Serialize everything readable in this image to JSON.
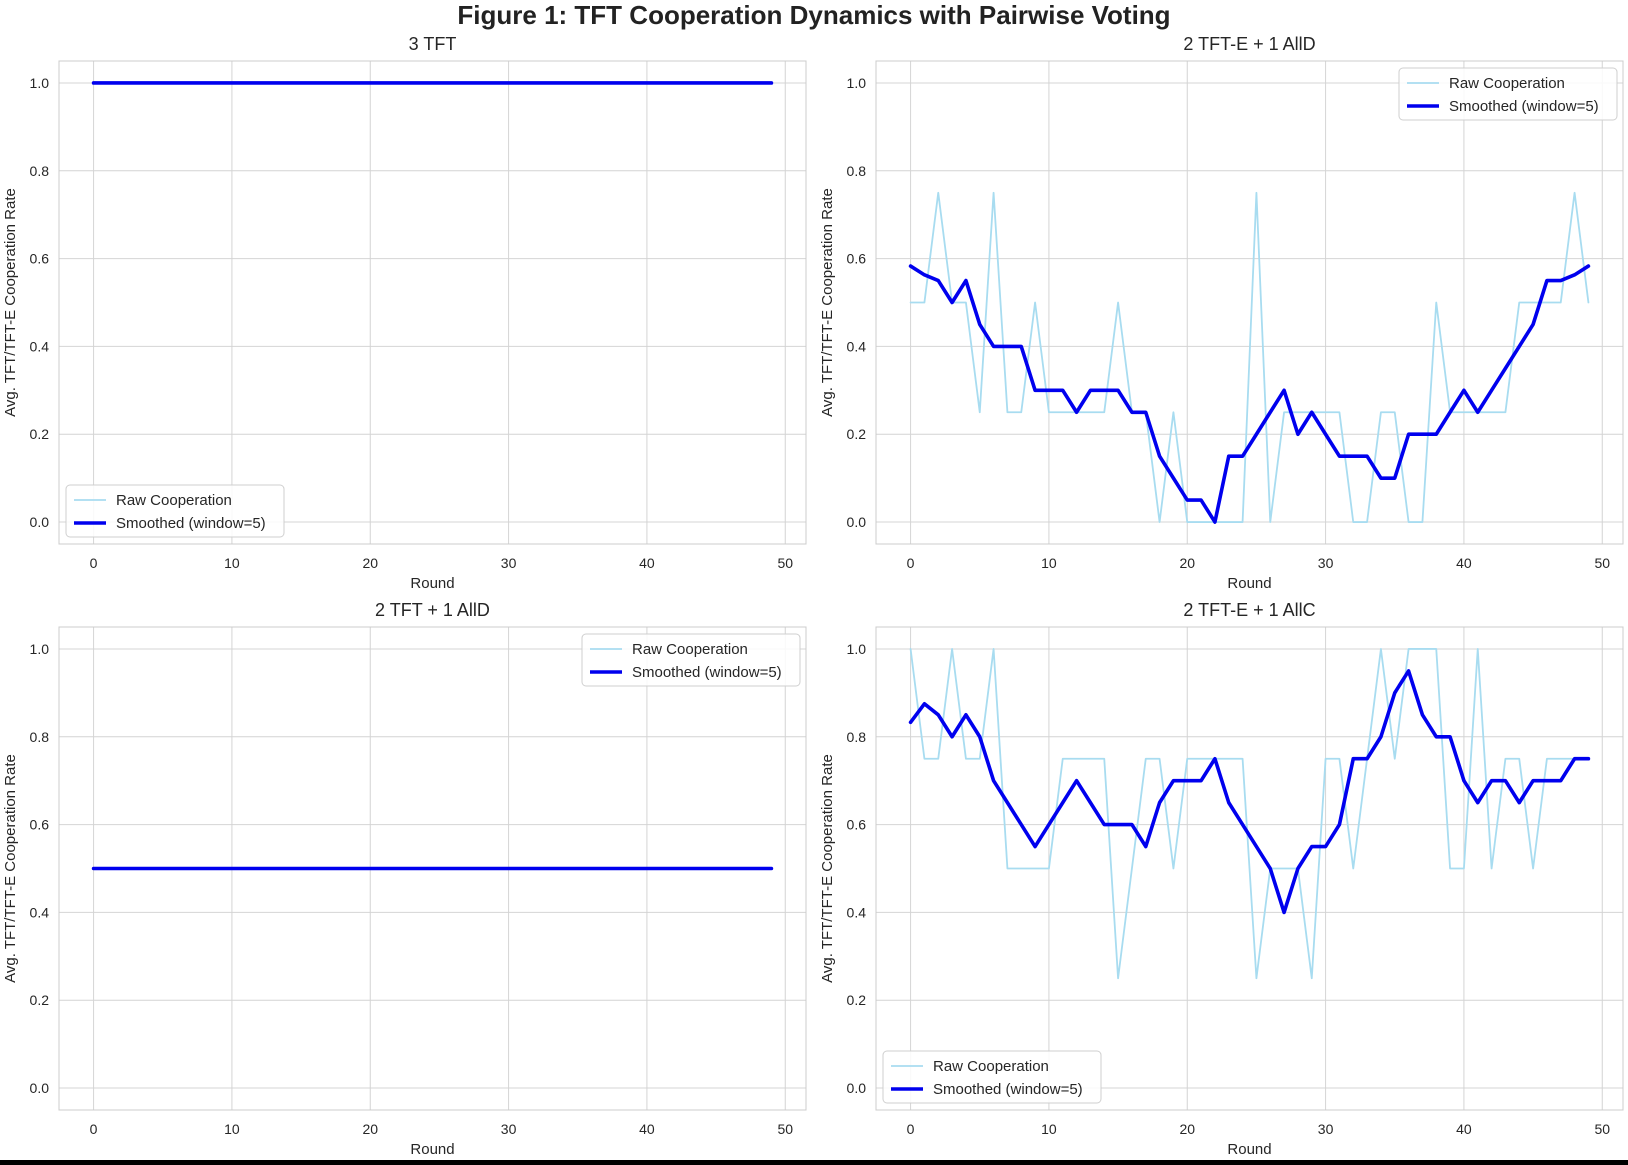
{
  "figure": {
    "title": "Figure 1: TFT Cooperation Dynamics with Pairwise Voting"
  },
  "colors": {
    "raw": "#a8dcf0",
    "smoothed": "#0000ee",
    "grid": "#d4d4d4",
    "spine": "#cccccc"
  },
  "chart_data": [
    {
      "type": "line",
      "title": "3 TFT",
      "xlabel": "Round",
      "ylabel": "Avg. TFT/TFT-E Cooperation Rate",
      "xlim": [
        -2.5,
        51.5
      ],
      "ylim": [
        -0.05,
        1.05
      ],
      "xticks": [
        0,
        10,
        20,
        30,
        40,
        50
      ],
      "yticks": [
        "0.0",
        "0.2",
        "0.4",
        "0.6",
        "0.8",
        "1.0"
      ],
      "grid": true,
      "legend_position": "lower-left",
      "x_start": 0,
      "series": [
        {
          "name": "Raw Cooperation",
          "style": "raw",
          "values": [
            1,
            1,
            1,
            1,
            1,
            1,
            1,
            1,
            1,
            1,
            1,
            1,
            1,
            1,
            1,
            1,
            1,
            1,
            1,
            1,
            1,
            1,
            1,
            1,
            1,
            1,
            1,
            1,
            1,
            1,
            1,
            1,
            1,
            1,
            1,
            1,
            1,
            1,
            1,
            1,
            1,
            1,
            1,
            1,
            1,
            1,
            1,
            1,
            1,
            1
          ]
        },
        {
          "name": "Smoothed (window=5)",
          "style": "smoothed",
          "values": [
            1,
            1,
            1,
            1,
            1,
            1,
            1,
            1,
            1,
            1,
            1,
            1,
            1,
            1,
            1,
            1,
            1,
            1,
            1,
            1,
            1,
            1,
            1,
            1,
            1,
            1,
            1,
            1,
            1,
            1,
            1,
            1,
            1,
            1,
            1,
            1,
            1,
            1,
            1,
            1,
            1,
            1,
            1,
            1,
            1,
            1,
            1,
            1,
            1,
            1
          ]
        }
      ]
    },
    {
      "type": "line",
      "title": "2 TFT-E + 1 AllD",
      "xlabel": "Round",
      "ylabel": "Avg. TFT/TFT-E Cooperation Rate",
      "xlim": [
        -2.5,
        51.5
      ],
      "ylim": [
        -0.05,
        1.05
      ],
      "xticks": [
        0,
        10,
        20,
        30,
        40,
        50
      ],
      "yticks": [
        "0.0",
        "0.2",
        "0.4",
        "0.6",
        "0.8",
        "1.0"
      ],
      "grid": true,
      "legend_position": "upper-right",
      "x_start": 0,
      "series": [
        {
          "name": "Raw Cooperation",
          "style": "raw",
          "values": [
            0.5,
            0.5,
            0.75,
            0.5,
            0.5,
            0.25,
            0.75,
            0.25,
            0.25,
            0.5,
            0.25,
            0.25,
            0.25,
            0.25,
            0.25,
            0.5,
            0.25,
            0.25,
            0,
            0.25,
            0,
            0,
            0,
            0,
            0,
            0.75,
            0,
            0.25,
            0.25,
            0.25,
            0.25,
            0.25,
            0,
            0,
            0.25,
            0.25,
            0,
            0,
            0.5,
            0.25,
            0.25,
            0.25,
            0.25,
            0.25,
            0.5,
            0.5,
            0.5,
            0.5,
            0.75,
            0.5
          ]
        },
        {
          "name": "Smoothed (window=5)",
          "style": "smoothed",
          "values": [
            0.583,
            0.563,
            0.55,
            0.5,
            0.55,
            0.45,
            0.4,
            0.4,
            0.4,
            0.3,
            0.3,
            0.3,
            0.25,
            0.3,
            0.3,
            0.3,
            0.25,
            0.25,
            0.15,
            0.1,
            0.05,
            0.05,
            0,
            0.15,
            0.15,
            0.2,
            0.25,
            0.3,
            0.2,
            0.25,
            0.2,
            0.15,
            0.15,
            0.15,
            0.1,
            0.1,
            0.2,
            0.2,
            0.2,
            0.25,
            0.3,
            0.25,
            0.3,
            0.35,
            0.4,
            0.45,
            0.55,
            0.55,
            0.563,
            0.583
          ]
        }
      ]
    },
    {
      "type": "line",
      "title": "2 TFT + 1 AllD",
      "xlabel": "Round",
      "ylabel": "Avg. TFT/TFT-E Cooperation Rate",
      "xlim": [
        -2.5,
        51.5
      ],
      "ylim": [
        -0.05,
        1.05
      ],
      "xticks": [
        0,
        10,
        20,
        30,
        40,
        50
      ],
      "yticks": [
        "0.0",
        "0.2",
        "0.4",
        "0.6",
        "0.8",
        "1.0"
      ],
      "grid": true,
      "legend_position": "upper-right",
      "x_start": 0,
      "series": [
        {
          "name": "Raw Cooperation",
          "style": "raw",
          "values": [
            0.5,
            0.5,
            0.5,
            0.5,
            0.5,
            0.5,
            0.5,
            0.5,
            0.5,
            0.5,
            0.5,
            0.5,
            0.5,
            0.5,
            0.5,
            0.5,
            0.5,
            0.5,
            0.5,
            0.5,
            0.5,
            0.5,
            0.5,
            0.5,
            0.5,
            0.5,
            0.5,
            0.5,
            0.5,
            0.5,
            0.5,
            0.5,
            0.5,
            0.5,
            0.5,
            0.5,
            0.5,
            0.5,
            0.5,
            0.5,
            0.5,
            0.5,
            0.5,
            0.5,
            0.5,
            0.5,
            0.5,
            0.5,
            0.5,
            0.5
          ]
        },
        {
          "name": "Smoothed (window=5)",
          "style": "smoothed",
          "values": [
            0.5,
            0.5,
            0.5,
            0.5,
            0.5,
            0.5,
            0.5,
            0.5,
            0.5,
            0.5,
            0.5,
            0.5,
            0.5,
            0.5,
            0.5,
            0.5,
            0.5,
            0.5,
            0.5,
            0.5,
            0.5,
            0.5,
            0.5,
            0.5,
            0.5,
            0.5,
            0.5,
            0.5,
            0.5,
            0.5,
            0.5,
            0.5,
            0.5,
            0.5,
            0.5,
            0.5,
            0.5,
            0.5,
            0.5,
            0.5,
            0.5,
            0.5,
            0.5,
            0.5,
            0.5,
            0.5,
            0.5,
            0.5,
            0.5,
            0.5
          ]
        }
      ]
    },
    {
      "type": "line",
      "title": "2 TFT-E + 1 AllC",
      "xlabel": "Round",
      "ylabel": "Avg. TFT/TFT-E Cooperation Rate",
      "xlim": [
        -2.5,
        51.5
      ],
      "ylim": [
        -0.05,
        1.05
      ],
      "xticks": [
        0,
        10,
        20,
        30,
        40,
        50
      ],
      "yticks": [
        "0.0",
        "0.2",
        "0.4",
        "0.6",
        "0.8",
        "1.0"
      ],
      "grid": true,
      "legend_position": "lower-left",
      "x_start": 0,
      "series": [
        {
          "name": "Raw Cooperation",
          "style": "raw",
          "values": [
            1,
            0.75,
            0.75,
            1,
            0.75,
            0.75,
            1,
            0.5,
            0.5,
            0.5,
            0.5,
            0.75,
            0.75,
            0.75,
            0.75,
            0.25,
            0.5,
            0.75,
            0.75,
            0.5,
            0.75,
            0.75,
            0.75,
            0.75,
            0.75,
            0.25,
            0.5,
            0.5,
            0.5,
            0.25,
            0.75,
            0.75,
            0.5,
            0.75,
            1,
            0.75,
            1,
            1,
            1,
            0.5,
            0.5,
            1,
            0.5,
            0.75,
            0.75,
            0.5,
            0.75,
            0.75,
            0.75,
            0.75
          ]
        },
        {
          "name": "Smoothed (window=5)",
          "style": "smoothed",
          "values": [
            0.833,
            0.875,
            0.85,
            0.8,
            0.85,
            0.8,
            0.7,
            0.65,
            0.6,
            0.55,
            0.6,
            0.65,
            0.7,
            0.65,
            0.6,
            0.6,
            0.6,
            0.55,
            0.65,
            0.7,
            0.7,
            0.7,
            0.75,
            0.65,
            0.6,
            0.55,
            0.5,
            0.4,
            0.5,
            0.55,
            0.55,
            0.6,
            0.75,
            0.75,
            0.8,
            0.9,
            0.95,
            0.85,
            0.8,
            0.8,
            0.7,
            0.65,
            0.7,
            0.7,
            0.65,
            0.7,
            0.7,
            0.7,
            0.75,
            0.75
          ]
        }
      ]
    }
  ]
}
